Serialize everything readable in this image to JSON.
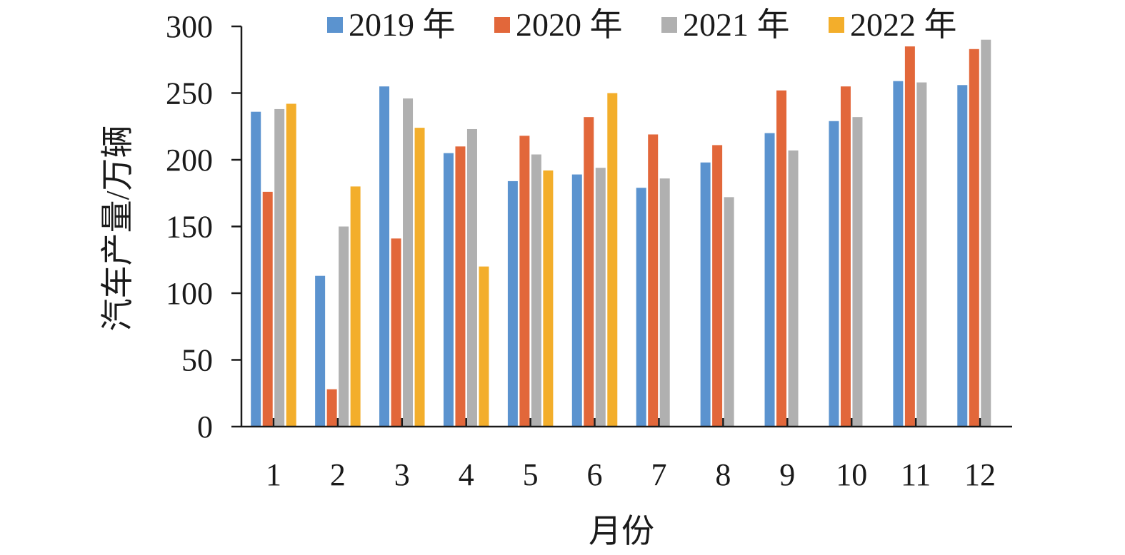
{
  "chart_data": {
    "type": "bar",
    "categories": [
      "1",
      "2",
      "3",
      "4",
      "5",
      "6",
      "7",
      "8",
      "9",
      "10",
      "11",
      "12"
    ],
    "series": [
      {
        "name": "2019 年",
        "color": "#5b93cf",
        "values": [
          236,
          113,
          255,
          205,
          184,
          189,
          179,
          198,
          220,
          229,
          259,
          256
        ]
      },
      {
        "name": "2020 年",
        "color": "#e2673a",
        "values": [
          176,
          28,
          141,
          210,
          218,
          232,
          219,
          211,
          252,
          255,
          285,
          283
        ]
      },
      {
        "name": "2021 年",
        "color": "#b0b0b0",
        "values": [
          238,
          150,
          246,
          223,
          204,
          194,
          186,
          172,
          207,
          232,
          258,
          290
        ]
      },
      {
        "name": "2022 年",
        "color": "#f3ae2b",
        "values": [
          242,
          180,
          224,
          120,
          192,
          250,
          null,
          null,
          null,
          null,
          null,
          null
        ]
      }
    ],
    "xlabel": "月份",
    "ylabel": "汽车产量/万辆",
    "ylim": [
      0,
      300
    ],
    "yticks": [
      0,
      50,
      100,
      150,
      200,
      250,
      300
    ],
    "grid": false,
    "legend": "top"
  }
}
